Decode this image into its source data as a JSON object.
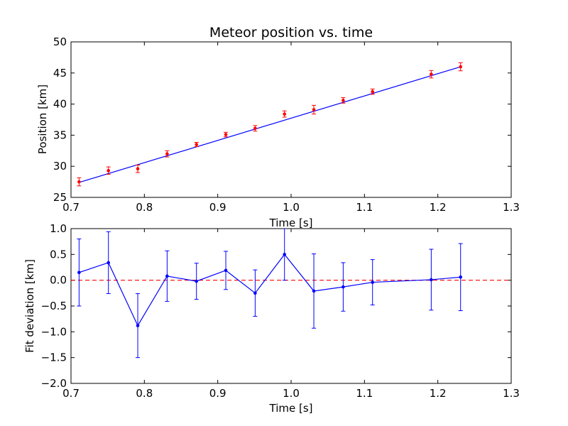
{
  "chart_data": [
    {
      "type": "scatter",
      "title": "Meteor position vs. time",
      "xlabel": "Time [s]",
      "ylabel": "Position [km]",
      "xlim": [
        0.7,
        1.3
      ],
      "ylim": [
        25,
        50
      ],
      "xticks": [
        "0.7",
        "0.8",
        "0.9",
        "1.0",
        "1.1",
        "1.2",
        "1.3"
      ],
      "yticks": [
        "25",
        "30",
        "35",
        "40",
        "45",
        "50"
      ],
      "grid": false,
      "colors": {
        "points": "#ff0000",
        "errorbars": "#ff0000",
        "fit": "#0000ff"
      },
      "series": [
        {
          "x": [
            0.711,
            0.751,
            0.791,
            0.831,
            0.871,
            0.911,
            0.951,
            0.991,
            1.031,
            1.071,
            1.111,
            1.191,
            1.231
          ],
          "y": [
            27.5,
            29.3,
            29.6,
            32.0,
            33.5,
            35.1,
            36.1,
            38.4,
            39.1,
            40.6,
            42.0,
            44.8,
            46.0
          ],
          "yerr": [
            0.65,
            0.6,
            0.6,
            0.5,
            0.35,
            0.37,
            0.45,
            0.5,
            0.7,
            0.45,
            0.43,
            0.6,
            0.65
          ]
        }
      ],
      "fit_line": {
        "x": [
          0.711,
          1.231
        ],
        "y": [
          27.4,
          46.0
        ]
      }
    },
    {
      "type": "line",
      "title": "",
      "xlabel": "Time [s]",
      "ylabel": "Fit deviation [km]",
      "xlim": [
        0.7,
        1.3
      ],
      "ylim": [
        -2.0,
        1.0
      ],
      "xticks": [
        "0.7",
        "0.8",
        "0.9",
        "1.0",
        "1.1",
        "1.2",
        "1.3"
      ],
      "yticks": [
        "−2.0",
        "−1.5",
        "−1.0",
        "−0.5",
        "0.0",
        "0.5",
        "1.0"
      ],
      "grid": false,
      "colors": {
        "series": "#0000ff",
        "zero_line": "#ff0000"
      },
      "series": [
        {
          "x": [
            0.711,
            0.751,
            0.791,
            0.831,
            0.871,
            0.911,
            0.951,
            0.991,
            1.031,
            1.071,
            1.111,
            1.191,
            1.231
          ],
          "y": [
            0.15,
            0.34,
            -0.88,
            0.08,
            -0.02,
            0.19,
            -0.25,
            0.5,
            -0.21,
            -0.13,
            -0.04,
            0.01,
            0.06
          ],
          "yerr": [
            0.65,
            0.6,
            0.62,
            0.49,
            0.35,
            0.37,
            0.45,
            0.5,
            0.72,
            0.47,
            0.44,
            0.59,
            0.65
          ]
        }
      ],
      "reference_line": {
        "y": 0.0,
        "style": "dashed"
      }
    }
  ]
}
